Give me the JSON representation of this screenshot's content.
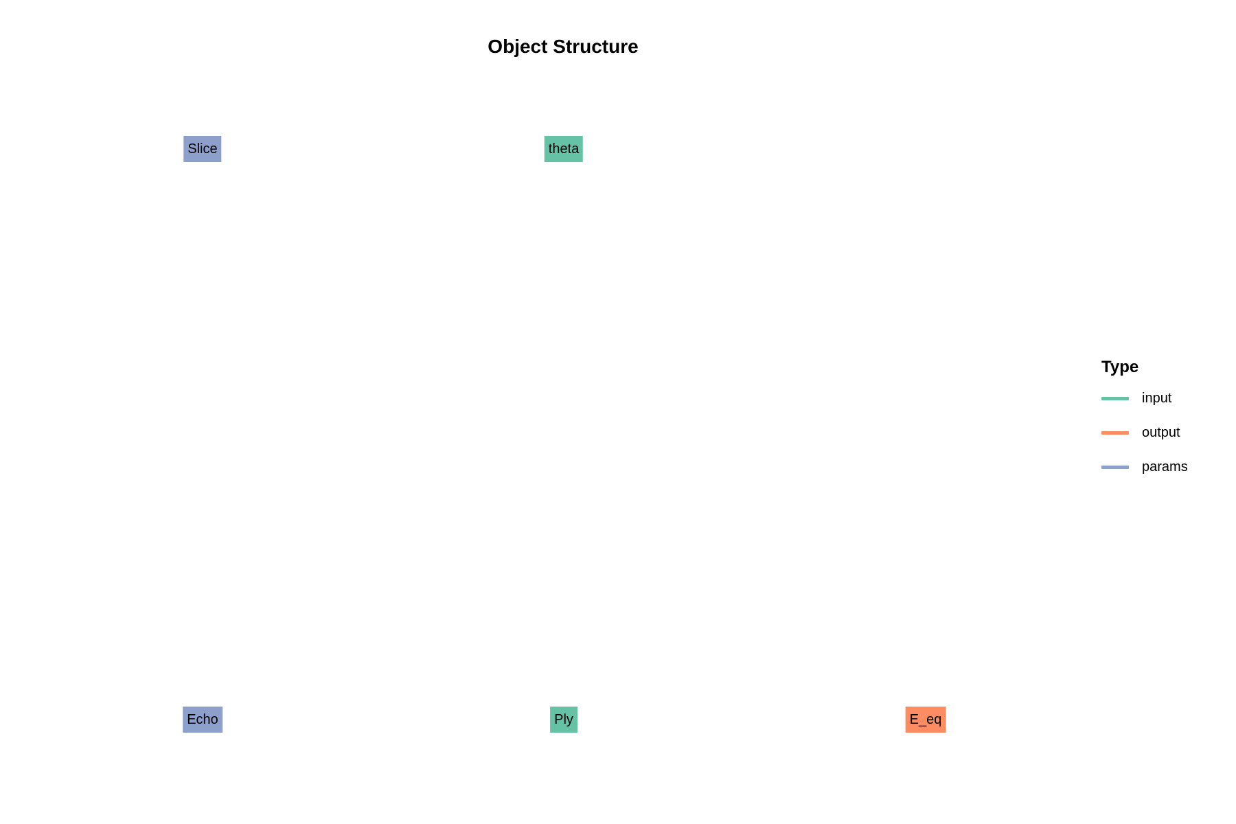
{
  "title": "Object Structure",
  "colors": {
    "input": "#66c2a5",
    "output": "#fc8d62",
    "params": "#8da0cb"
  },
  "nodes": [
    {
      "id": "slice",
      "label": "Slice",
      "type": "params"
    },
    {
      "id": "theta",
      "label": "theta",
      "type": "input"
    },
    {
      "id": "echo",
      "label": "Echo",
      "type": "params"
    },
    {
      "id": "ply",
      "label": "Ply",
      "type": "input"
    },
    {
      "id": "e_eq",
      "label": "E_eq",
      "type": "output"
    }
  ],
  "legend": {
    "title": "Type",
    "items": [
      {
        "label": "input",
        "type": "input"
      },
      {
        "label": "output",
        "type": "output"
      },
      {
        "label": "params",
        "type": "params"
      }
    ]
  }
}
